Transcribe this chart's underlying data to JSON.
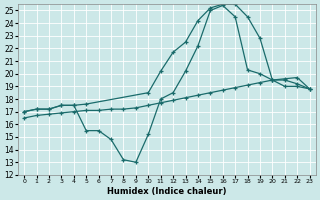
{
  "xlabel": "Humidex (Indice chaleur)",
  "background_color": "#cce8e8",
  "grid_color": "#ffffff",
  "line_color": "#1a6b6b",
  "xlim": [
    -0.5,
    23.5
  ],
  "ylim": [
    12,
    25.5
  ],
  "xticks": [
    0,
    1,
    2,
    3,
    4,
    5,
    6,
    7,
    8,
    9,
    10,
    11,
    12,
    13,
    14,
    15,
    16,
    17,
    18,
    19,
    20,
    21,
    22,
    23
  ],
  "yticks": [
    12,
    13,
    14,
    15,
    16,
    17,
    18,
    19,
    20,
    21,
    22,
    23,
    24,
    25
  ],
  "curve1_x": [
    0,
    1,
    2,
    3,
    4,
    5,
    10,
    11,
    12,
    13,
    14,
    15,
    16,
    17,
    18,
    19,
    20,
    21,
    22,
    23
  ],
  "curve1_y": [
    17.0,
    17.2,
    17.2,
    17.5,
    17.5,
    17.6,
    18.5,
    20.2,
    21.7,
    22.5,
    24.2,
    25.2,
    25.5,
    25.5,
    24.5,
    22.8,
    19.5,
    19.5,
    19.2,
    18.8
  ],
  "curve2_x": [
    0,
    1,
    2,
    3,
    4,
    5,
    6,
    7,
    8,
    9,
    10,
    11,
    12,
    13,
    14,
    15,
    16,
    17,
    18,
    19,
    20,
    21,
    22,
    23
  ],
  "curve2_y": [
    17.0,
    17.2,
    17.2,
    17.5,
    17.5,
    15.5,
    15.5,
    14.8,
    13.2,
    13.0,
    15.2,
    18.0,
    18.5,
    20.2,
    22.2,
    25.0,
    25.4,
    24.5,
    20.3,
    20.0,
    19.5,
    19.0,
    19.0,
    18.8
  ],
  "curve3_x": [
    0,
    1,
    2,
    3,
    4,
    5,
    6,
    7,
    8,
    9,
    10,
    11,
    12,
    13,
    14,
    15,
    16,
    17,
    18,
    19,
    20,
    21,
    22,
    23
  ],
  "curve3_y": [
    16.5,
    16.7,
    16.8,
    16.9,
    17.0,
    17.1,
    17.1,
    17.2,
    17.2,
    17.3,
    17.5,
    17.7,
    17.9,
    18.1,
    18.3,
    18.5,
    18.7,
    18.9,
    19.1,
    19.3,
    19.5,
    19.6,
    19.7,
    18.8
  ]
}
